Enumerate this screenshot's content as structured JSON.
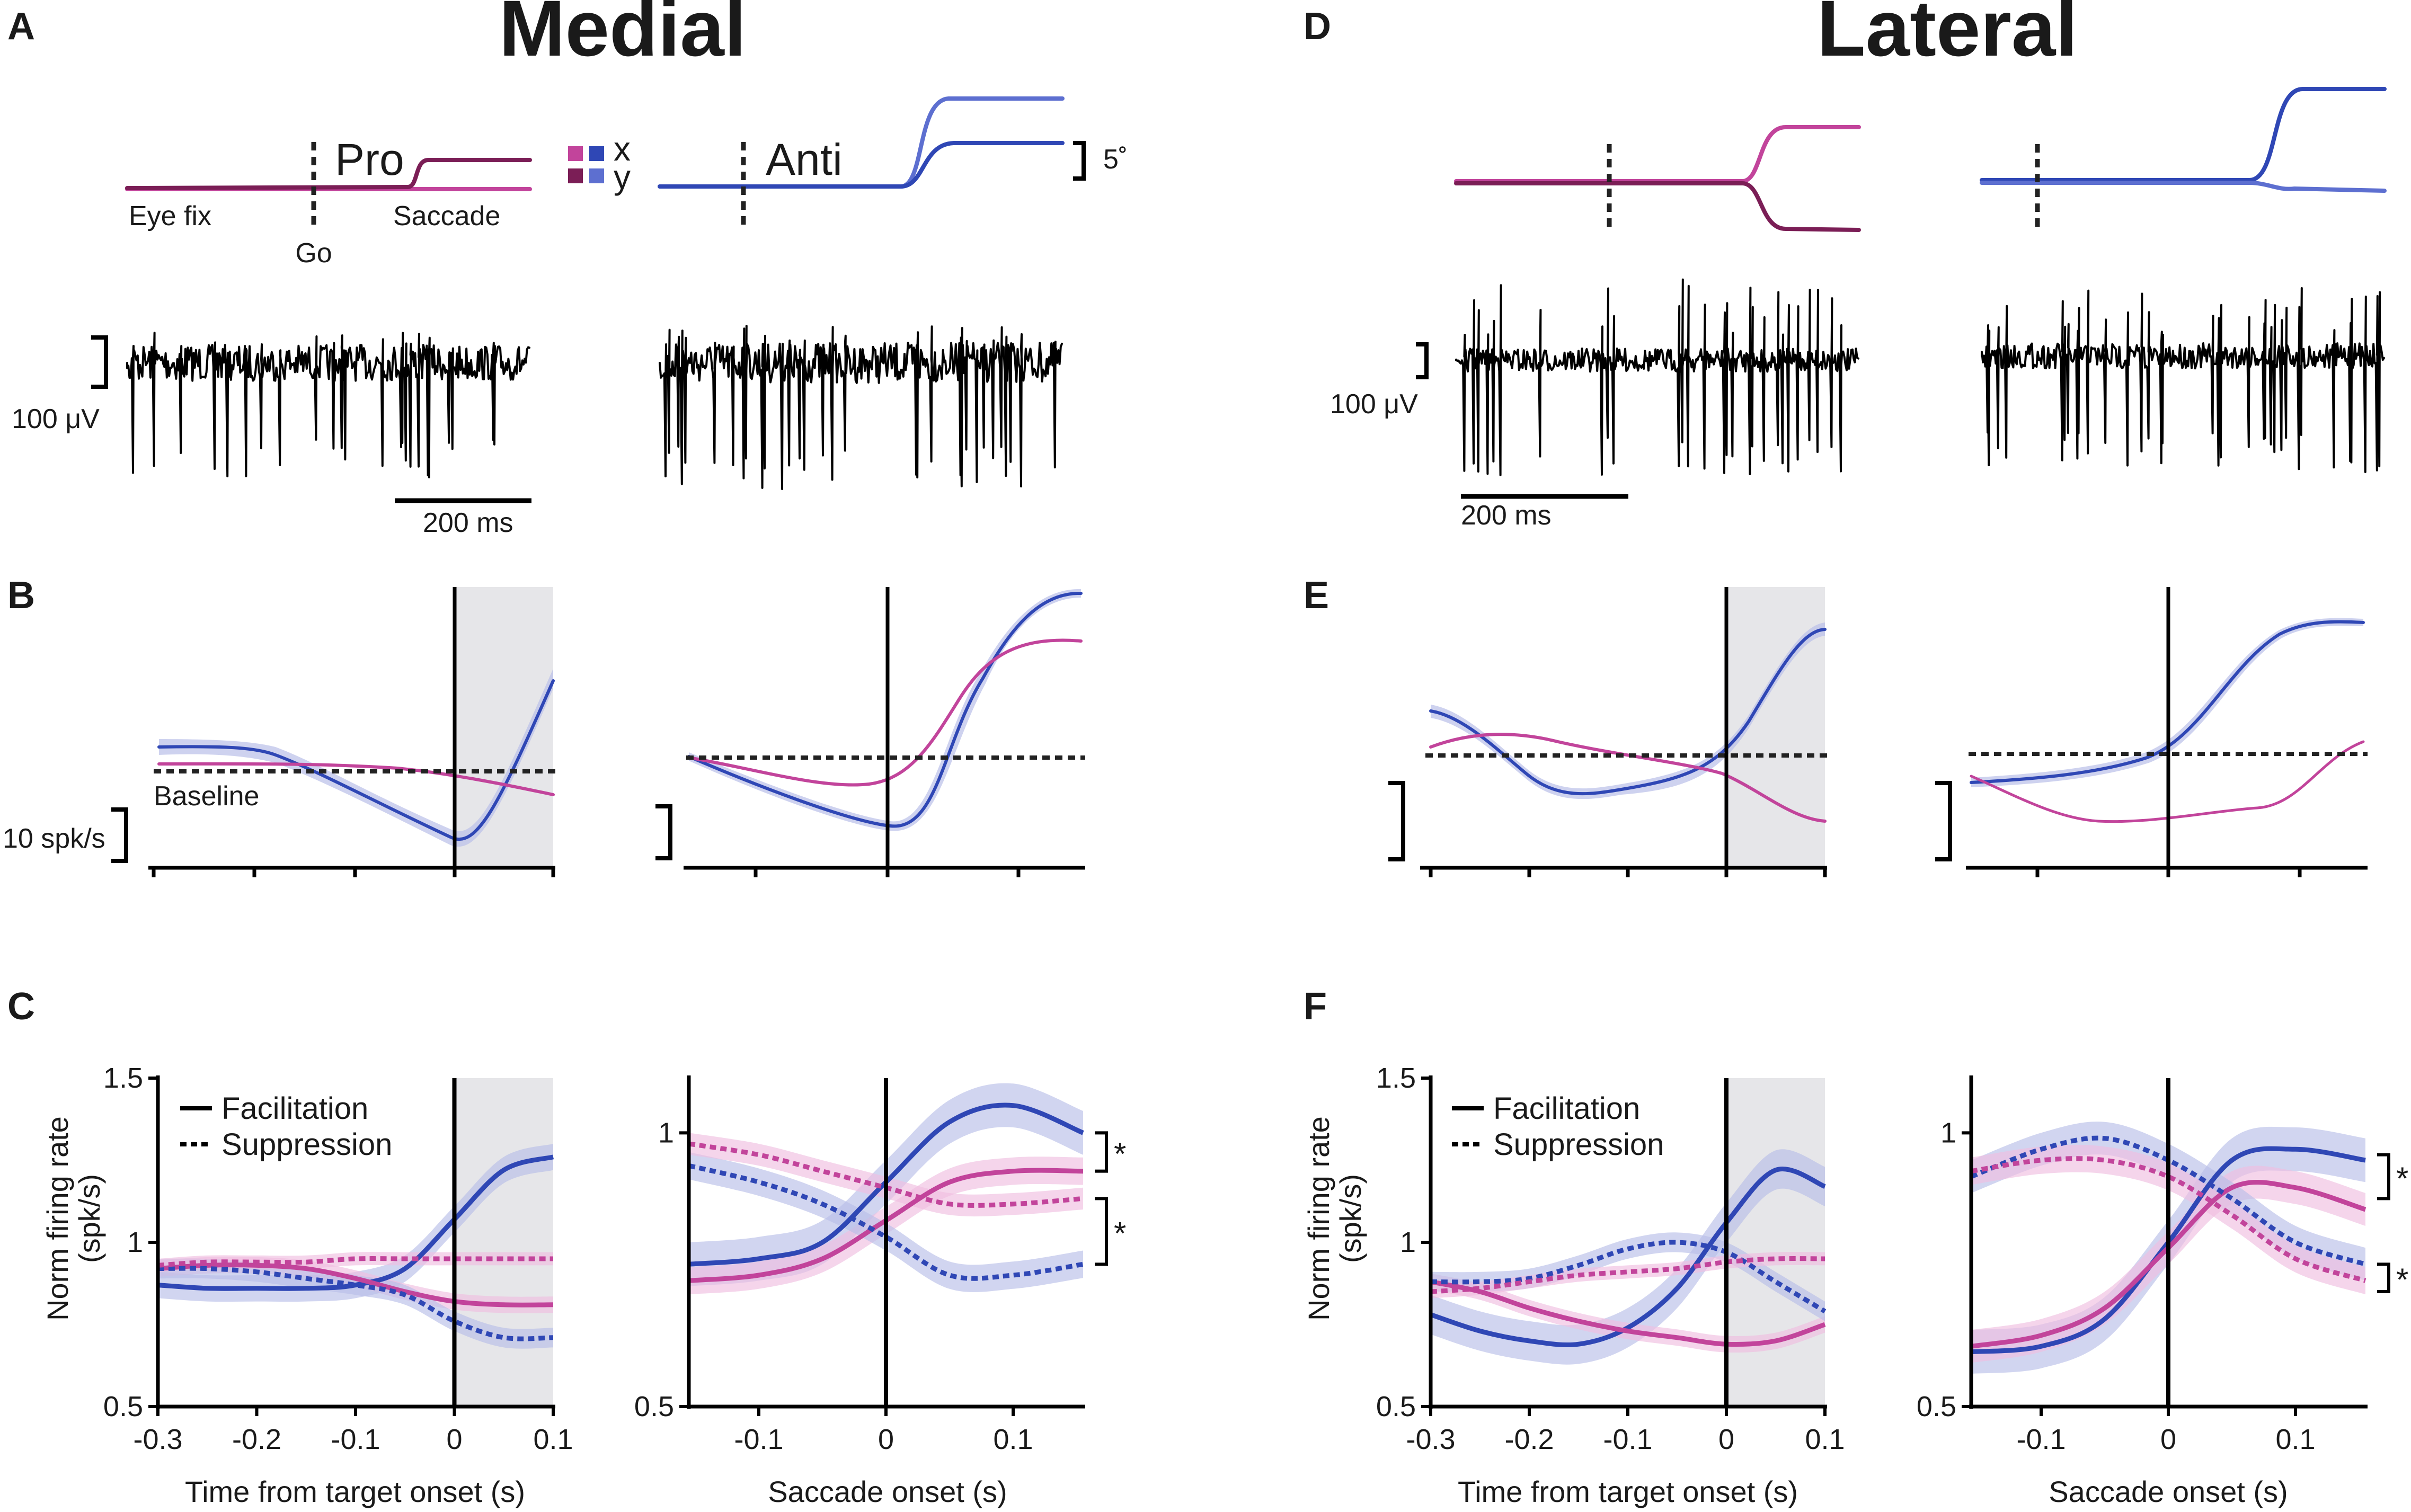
{
  "figure": {
    "panel_letters": [
      "A",
      "B",
      "C",
      "D",
      "E",
      "F"
    ],
    "medial_title": "Medial",
    "lateral_title": "Lateral"
  },
  "colors": {
    "magenta": "#c2449b",
    "magenta_dark": "#7b1e56",
    "magenta_light": "#e07cc2",
    "blue": "#2f47b5",
    "blue_light": "#5d6fd0",
    "blue_band": "#b9bfe8",
    "magenta_band": "#efbfe0",
    "shade": "#e6e6e9",
    "black": "#000000"
  },
  "panelA": {
    "pro_label": "Pro",
    "anti_label": "Anti",
    "eye_fix_label": "Eye fix",
    "go_label": "Go",
    "saccade_label": "Saccade",
    "legend_x": "x",
    "legend_y": "y",
    "eye_scale": "5˚",
    "voltage_scale": "100 μV",
    "time_scale": "200 ms",
    "icons": [
      "square-icon"
    ]
  },
  "panelB": {
    "baseline_label": "Baseline",
    "rate_scale": "10 spk/s"
  },
  "panelD": {
    "voltage_scale": "100 μV",
    "time_scale": "200 ms"
  },
  "panelC": {
    "ylabel": "Norm firing rate (spk/s)",
    "ylabel_line1": "Norm firing rate",
    "ylabel_line2": "(spk/s)",
    "legend_facilitation": "Facilitation",
    "legend_suppression": "Suppression",
    "left_xlabel": "Time from target onset (s)",
    "right_xlabel": "Saccade onset (s)",
    "significance": "*"
  },
  "chart_data": [
    {
      "id": "C-left",
      "type": "line",
      "title": "",
      "xlabel": "Time from target onset (s)",
      "ylabel": "Norm firing rate (spk/s)",
      "xlim": [
        -0.3,
        0.1
      ],
      "ylim": [
        0.5,
        1.5
      ],
      "xticks": [
        -0.3,
        -0.2,
        -0.1,
        0,
        0.1
      ],
      "xtick_labels": [
        "-0.3",
        "-0.2",
        "-0.1",
        "0",
        "0.1"
      ],
      "yticks": [
        0.5,
        1,
        1.5
      ],
      "ytick_labels": [
        "0.5",
        "1",
        "1.5"
      ],
      "shaded_region": [
        0,
        0.1
      ],
      "vline": 0,
      "series": [
        {
          "name": "Blue facilitation",
          "color": "blue",
          "style": "solid",
          "band": 0.04,
          "x": [
            -0.3,
            -0.25,
            -0.2,
            -0.15,
            -0.1,
            -0.05,
            0,
            0.05,
            0.1
          ],
          "values": [
            0.87,
            0.86,
            0.86,
            0.86,
            0.87,
            0.92,
            1.07,
            1.22,
            1.26
          ]
        },
        {
          "name": "Magenta facilitation",
          "color": "magenta",
          "style": "solid",
          "band": 0.025,
          "x": [
            -0.3,
            -0.25,
            -0.2,
            -0.15,
            -0.1,
            -0.05,
            0,
            0.05,
            0.1
          ],
          "values": [
            0.92,
            0.93,
            0.93,
            0.92,
            0.89,
            0.85,
            0.82,
            0.81,
            0.81
          ]
        },
        {
          "name": "Blue suppression",
          "color": "blue",
          "style": "dotted",
          "band": 0.03,
          "x": [
            -0.3,
            -0.25,
            -0.2,
            -0.15,
            -0.1,
            -0.05,
            0,
            0.05,
            0.1
          ],
          "values": [
            0.92,
            0.92,
            0.91,
            0.89,
            0.87,
            0.84,
            0.76,
            0.71,
            0.71
          ]
        },
        {
          "name": "Magenta suppression",
          "color": "magenta",
          "style": "dotted",
          "band": 0.02,
          "x": [
            -0.3,
            -0.25,
            -0.2,
            -0.15,
            -0.1,
            -0.05,
            0,
            0.05,
            0.1
          ],
          "values": [
            0.93,
            0.94,
            0.94,
            0.94,
            0.95,
            0.95,
            0.95,
            0.95,
            0.95
          ]
        }
      ]
    },
    {
      "id": "C-right",
      "type": "line",
      "xlabel": "Saccade onset (s)",
      "xlim": [
        -0.155,
        0.155
      ],
      "ylim": [
        0.5,
        1.1
      ],
      "xticks": [
        -0.1,
        0,
        0.1
      ],
      "xtick_labels": [
        "-0.1",
        "0",
        "0.1"
      ],
      "yticks": [
        0.5,
        1
      ],
      "ytick_labels": [
        "0.5",
        "1"
      ],
      "vline": 0,
      "significance_brackets": [
        [
          0.93,
          1.0
        ],
        [
          0.76,
          0.88
        ]
      ],
      "series": [
        {
          "name": "Blue facilitation",
          "color": "blue",
          "style": "solid",
          "band": 0.04,
          "x": [
            -0.155,
            -0.1,
            -0.05,
            0,
            0.05,
            0.1,
            0.155
          ],
          "values": [
            0.76,
            0.77,
            0.8,
            0.91,
            1.02,
            1.05,
            1.0
          ]
        },
        {
          "name": "Magenta facilitation",
          "color": "magenta",
          "style": "solid",
          "band": 0.025,
          "x": [
            -0.155,
            -0.1,
            -0.05,
            0,
            0.05,
            0.1,
            0.155
          ],
          "values": [
            0.73,
            0.74,
            0.77,
            0.84,
            0.91,
            0.93,
            0.93
          ]
        },
        {
          "name": "Blue suppression",
          "color": "blue",
          "style": "dotted",
          "band": 0.025,
          "x": [
            -0.155,
            -0.1,
            -0.05,
            0,
            0.05,
            0.1,
            0.155
          ],
          "values": [
            0.94,
            0.91,
            0.87,
            0.81,
            0.74,
            0.74,
            0.76
          ]
        },
        {
          "name": "Magenta suppression",
          "color": "magenta",
          "style": "dotted",
          "band": 0.02,
          "x": [
            -0.155,
            -0.1,
            -0.05,
            0,
            0.05,
            0.1,
            0.155
          ],
          "values": [
            0.98,
            0.96,
            0.93,
            0.9,
            0.87,
            0.87,
            0.88
          ]
        }
      ]
    },
    {
      "id": "F-left",
      "type": "line",
      "xlabel": "Time from target onset (s)",
      "ylabel": "Norm firing rate (spk/s)",
      "xlim": [
        -0.3,
        0.1
      ],
      "ylim": [
        0.5,
        1.5
      ],
      "xticks": [
        -0.3,
        -0.2,
        -0.1,
        0,
        0.1
      ],
      "xtick_labels": [
        "-0.3",
        "-0.2",
        "-0.1",
        "0",
        "0.1"
      ],
      "yticks": [
        0.5,
        1,
        1.5
      ],
      "ytick_labels": [
        "0.5",
        "1",
        "1.5"
      ],
      "shaded_region": [
        0,
        0.1
      ],
      "vline": 0,
      "series": [
        {
          "name": "Blue facilitation",
          "color": "blue",
          "style": "solid",
          "band": 0.06,
          "x": [
            -0.3,
            -0.25,
            -0.2,
            -0.15,
            -0.1,
            -0.05,
            0,
            0.05,
            0.1
          ],
          "values": [
            0.78,
            0.73,
            0.7,
            0.69,
            0.74,
            0.86,
            1.06,
            1.22,
            1.17
          ]
        },
        {
          "name": "Magenta facilitation",
          "color": "magenta",
          "style": "solid",
          "band": 0.025,
          "x": [
            -0.3,
            -0.25,
            -0.2,
            -0.15,
            -0.1,
            -0.05,
            0,
            0.05,
            0.1
          ],
          "values": [
            0.88,
            0.85,
            0.8,
            0.76,
            0.73,
            0.71,
            0.69,
            0.7,
            0.75
          ]
        },
        {
          "name": "Blue suppression",
          "color": "blue",
          "style": "dotted",
          "band": 0.03,
          "x": [
            -0.3,
            -0.25,
            -0.2,
            -0.15,
            -0.1,
            -0.05,
            0,
            0.05,
            0.1
          ],
          "values": [
            0.88,
            0.88,
            0.89,
            0.93,
            0.98,
            1.0,
            0.97,
            0.88,
            0.79
          ]
        },
        {
          "name": "Magenta suppression",
          "color": "magenta",
          "style": "dotted",
          "band": 0.02,
          "x": [
            -0.3,
            -0.25,
            -0.2,
            -0.15,
            -0.1,
            -0.05,
            0,
            0.05,
            0.1
          ],
          "values": [
            0.85,
            0.86,
            0.88,
            0.9,
            0.91,
            0.92,
            0.94,
            0.95,
            0.95
          ]
        }
      ]
    },
    {
      "id": "F-right",
      "type": "line",
      "xlabel": "Saccade onset (s)",
      "xlim": [
        -0.155,
        0.155
      ],
      "ylim": [
        0.5,
        1.1
      ],
      "xticks": [
        -0.1,
        0,
        0.1
      ],
      "xtick_labels": [
        "-0.1",
        "0",
        "0.1"
      ],
      "yticks": [
        0.5,
        1
      ],
      "ytick_labels": [
        "0.5",
        "1"
      ],
      "vline": 0,
      "significance_brackets": [
        [
          0.88,
          0.96
        ],
        [
          0.71,
          0.76
        ]
      ],
      "series": [
        {
          "name": "Blue facilitation",
          "color": "blue",
          "style": "solid",
          "band": 0.04,
          "x": [
            -0.155,
            -0.1,
            -0.05,
            0,
            0.05,
            0.1,
            0.155
          ],
          "values": [
            0.6,
            0.61,
            0.66,
            0.8,
            0.95,
            0.97,
            0.95
          ]
        },
        {
          "name": "Magenta facilitation",
          "color": "magenta",
          "style": "solid",
          "band": 0.03,
          "x": [
            -0.155,
            -0.1,
            -0.05,
            0,
            0.05,
            0.1,
            0.155
          ],
          "values": [
            0.61,
            0.63,
            0.68,
            0.79,
            0.9,
            0.9,
            0.86
          ]
        },
        {
          "name": "Blue suppression",
          "color": "blue",
          "style": "dotted",
          "band": 0.03,
          "x": [
            -0.155,
            -0.1,
            -0.05,
            0,
            0.05,
            0.1,
            0.155
          ],
          "values": [
            0.92,
            0.97,
            0.99,
            0.95,
            0.88,
            0.8,
            0.76
          ]
        },
        {
          "name": "Magenta suppression",
          "color": "magenta",
          "style": "dotted",
          "band": 0.025,
          "x": [
            -0.155,
            -0.1,
            -0.05,
            0,
            0.05,
            0.1,
            0.155
          ],
          "values": [
            0.93,
            0.95,
            0.95,
            0.92,
            0.85,
            0.77,
            0.73
          ]
        }
      ]
    }
  ]
}
